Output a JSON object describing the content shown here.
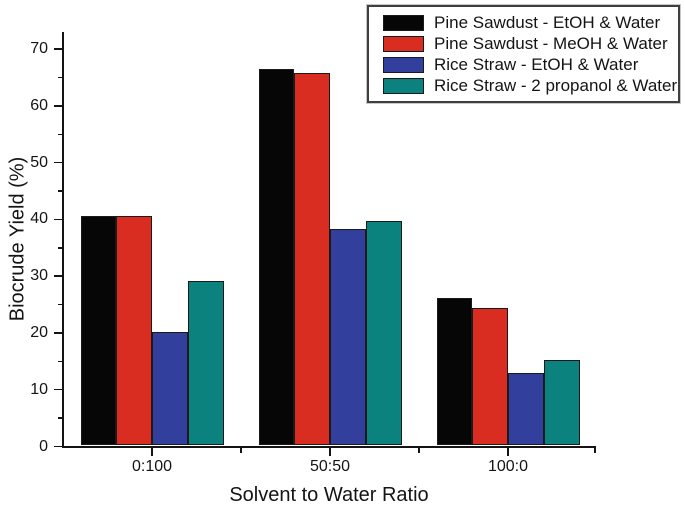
{
  "chart_data": {
    "type": "bar",
    "title": "",
    "xlabel": "Solvent to Water Ratio",
    "ylabel": "Biocrude Yield (%)",
    "categories": [
      "0:100",
      "50:50",
      "100:0"
    ],
    "series": [
      {
        "name": "Pine Sawdust - EtOH & Water",
        "color": "#060606",
        "values": [
          40.4,
          66.3,
          26.0
        ]
      },
      {
        "name": "Pine Sawdust - MeOH & Water",
        "color": "#d92d21",
        "values": [
          40.4,
          65.7,
          24.2
        ]
      },
      {
        "name": "Rice Straw - EtOH & Water",
        "color": "#323f9d",
        "values": [
          20.0,
          38.1,
          12.8
        ]
      },
      {
        "name": "Rice Straw - 2 propanol & Water",
        "color": "#0b827d",
        "values": [
          29.0,
          39.6,
          15.1
        ]
      }
    ],
    "ylim": [
      0,
      72.75
    ],
    "yticks_major": [
      0,
      10,
      20,
      30,
      40,
      50,
      60,
      70
    ],
    "yticks_minor": [
      5,
      15,
      25,
      35,
      45,
      55,
      65
    ],
    "grid": false,
    "legend_position": "top-right",
    "bar_outline_color": "#1a1a1a",
    "axis_color": "#141414",
    "text_color": "#141414",
    "background_color": "#ffffff"
  }
}
